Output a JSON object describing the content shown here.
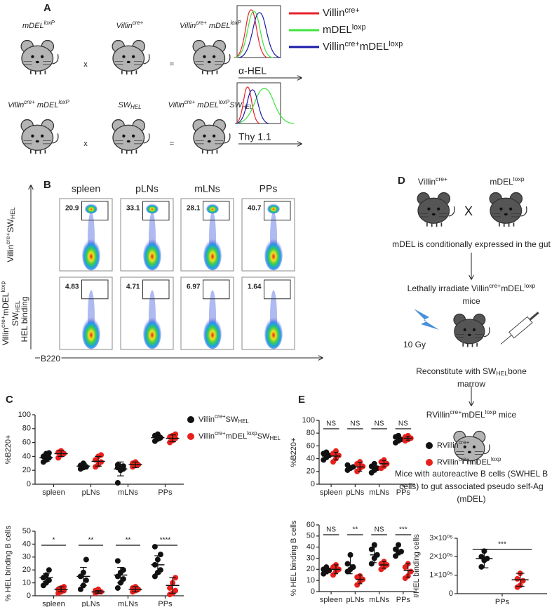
{
  "panel_labels": [
    "A",
    "B",
    "C",
    "D",
    "E"
  ],
  "panel_a": {
    "crosses": [
      {
        "parent1": [
          {
            "t": "mDEL"
          },
          {
            "sup": "loxP"
          }
        ],
        "op1": "x",
        "parent2": [
          {
            "t": "Villin"
          },
          {
            "sup": "cre+"
          }
        ],
        "op2": "=",
        "offspring": [
          {
            "t": "Villin"
          },
          {
            "sup": "cre+"
          },
          {
            "t": " mDEL"
          },
          {
            "sup": "loxP"
          }
        ]
      },
      {
        "parent1": [
          {
            "t": "Villin"
          },
          {
            "sup": "cre+"
          },
          {
            "t": " mDEL"
          },
          {
            "sup": "loxP"
          }
        ],
        "op1": "x",
        "parent2": [
          {
            "t": "SW"
          },
          {
            "sub": "HEL"
          }
        ],
        "op2": "=",
        "offspring": [
          {
            "t": "Villin"
          },
          {
            "sup": "cre+"
          },
          {
            "t": " mDEL"
          },
          {
            "sup": "loxP"
          },
          {
            "t": "SW"
          },
          {
            "sub": "HEL"
          }
        ]
      }
    ],
    "histogram_legend": [
      {
        "label": [
          {
            "t": "Villin"
          },
          {
            "sup": "cre+"
          }
        ],
        "color": "#e8202a"
      },
      {
        "label": [
          {
            "t": "mDEL"
          },
          {
            "sup": "loxp"
          }
        ],
        "color": "#3ee63e"
      },
      {
        "label": [
          {
            "t": "Villin"
          },
          {
            "sup": "cre+"
          },
          {
            "t": "mDEL"
          },
          {
            "sup": "loxp"
          }
        ],
        "color": "#1a1aa8"
      }
    ],
    "histogram_axis_labels": [
      "α-HEL",
      "Thy 1.1"
    ]
  },
  "panel_b": {
    "columns": [
      "spleen",
      "pLNs",
      "mLNs",
      "PPs"
    ],
    "rows": [
      {
        "label_lines": [
          [
            {
              "t": "Villin"
            },
            {
              "sup": "cre+"
            },
            {
              "t": "SW"
            },
            {
              "sub": "HEL"
            }
          ]
        ],
        "gates": [
          20.9,
          33.1,
          28.1,
          40.7
        ]
      },
      {
        "label_lines": [
          [
            {
              "t": "Villin"
            },
            {
              "sup": "cre+"
            },
            {
              "t": "mDEL"
            },
            {
              "sup": "loxp"
            }
          ],
          [
            {
              "t": "SW"
            },
            {
              "sub": "HEL"
            }
          ]
        ],
        "gates": [
          4.83,
          4.71,
          6.97,
          1.64
        ]
      }
    ],
    "y_axis_label": "HEL binding",
    "x_axis_label": "B220"
  },
  "panel_d": {
    "parents": [
      [
        {
          "t": "Villin"
        },
        {
          "sup": "cre+"
        }
      ],
      [
        {
          "t": "mDEL"
        },
        {
          "sup": "loxp"
        }
      ]
    ],
    "cross": "X",
    "dose": "10 Gy",
    "steps": [
      [
        [
          {
            "t": "mDEL is conditionally expressed in the gut"
          }
        ]
      ],
      [
        [
          {
            "t": "Lethally irradiate Villin"
          },
          {
            "sup": "cre+"
          },
          {
            "t": "mDEL"
          },
          {
            "sup": "loxp"
          }
        ],
        [
          {
            "t": "mice"
          }
        ]
      ],
      [
        [
          {
            "t": "Reconstitute with SW"
          },
          {
            "sub": "HEL"
          },
          {
            "t": "bone"
          }
        ],
        [
          {
            "t": "marrow"
          }
        ]
      ],
      [
        [
          {
            "t": "RVillin"
          },
          {
            "sup": "cre+"
          },
          {
            "t": "mDEL"
          },
          {
            "sup": "loxp"
          },
          {
            "t": " mice"
          }
        ]
      ],
      [
        [
          {
            "t": "Mice with autoreactive B cells (SWHEL B"
          }
        ],
        [
          {
            "t": "cells) to gut associated pseudo self-Ag"
          }
        ],
        [
          {
            "t": "(mDEL)"
          }
        ]
      ]
    ]
  },
  "chart_data": [
    {
      "type": "dot",
      "ylabel": "%B220+",
      "categories": [
        "spleen",
        "pLNs",
        "mLNs",
        "PPs"
      ],
      "ylim": [
        0,
        100
      ],
      "yticks": [
        0,
        20,
        40,
        60,
        80,
        100
      ],
      "series": [
        {
          "name": [
            {
              "t": "Villin"
            },
            {
              "sup": "cre+"
            },
            {
              "t": "SW"
            },
            {
              "sub": "HEL"
            }
          ],
          "color": "#111111",
          "values": [
            [
              32,
              35,
              38,
              40,
              44,
              45
            ],
            [
              22,
              24,
              25,
              27,
              30
            ],
            [
              2,
              20,
              22,
              24,
              25,
              26,
              28
            ],
            [
              62,
              65,
              67,
              70,
              72
            ]
          ],
          "means": [
            38,
            26,
            22,
            67
          ],
          "sds": [
            5,
            4,
            10,
            4
          ]
        },
        {
          "name": [
            {
              "t": "Villin"
            },
            {
              "sup": "cre+"
            },
            {
              "t": "mDEL"
            },
            {
              "sup": "loxp"
            },
            {
              "t": "SW"
            },
            {
              "sub": "HEL"
            }
          ],
          "color": "#e8201c",
          "values": [
            [
              38,
              42,
              44,
              46,
              48
            ],
            [
              25,
              28,
              32,
              35,
              40,
              42
            ],
            [
              25,
              27,
              28,
              30,
              32
            ],
            [
              60,
              63,
              66,
              68,
              70,
              72
            ]
          ],
          "means": [
            44,
            33,
            28,
            66
          ],
          "sds": [
            4,
            7,
            4,
            5
          ]
        }
      ]
    },
    {
      "type": "dot",
      "ylabel": "% HEL binding B cells",
      "categories": [
        "spleen",
        "pLNs",
        "mLNs",
        "PPs"
      ],
      "ylim": [
        0,
        50
      ],
      "yticks": [
        0,
        10,
        20,
        30,
        40,
        50
      ],
      "annotations": [
        "*",
        "**",
        "**",
        "****"
      ],
      "series": [
        {
          "color": "#111111",
          "values": [
            [
              8,
              10,
              12,
              14,
              16,
              20
            ],
            [
              5,
              8,
              12,
              15,
              18,
              28
            ],
            [
              6,
              10,
              13,
              15,
              18,
              20,
              27
            ],
            [
              15,
              18,
              20,
              24,
              28,
              32,
              38
            ]
          ],
          "means": [
            14,
            15,
            16,
            24
          ],
          "sds": [
            3,
            7,
            6,
            7
          ]
        },
        {
          "color": "#e8201c",
          "values": [
            [
              2,
              3,
              4,
              5,
              6,
              7
            ],
            [
              2,
              3,
              3,
              4,
              5
            ],
            [
              3,
              4,
              5,
              6,
              7
            ],
            [
              1,
              2,
              4,
              6,
              10,
              14
            ]
          ],
          "means": [
            5,
            3,
            5,
            8
          ],
          "sds": [
            2,
            1,
            2,
            6
          ]
        }
      ]
    },
    {
      "type": "dot",
      "ylabel": "%B220+",
      "categories": [
        "spleen",
        "pLNs",
        "mLNs",
        "PPs"
      ],
      "ylim": [
        0,
        100
      ],
      "yticks": [
        0,
        20,
        40,
        60,
        80,
        100
      ],
      "annotations": [
        "NS",
        "NS",
        "NS",
        "NS"
      ],
      "series": [
        {
          "name": [
            {
              "t": "RVillin"
            },
            {
              "sup": "cre+"
            }
          ],
          "color": "#111111",
          "values": [
            [
              38,
              42,
              45,
              48,
              50
            ],
            [
              22,
              25,
              27,
              30
            ],
            [
              18,
              22,
              25,
              28,
              32
            ],
            [
              65,
              68,
              70,
              74,
              76
            ]
          ],
          "means": [
            44,
            26,
            25,
            72
          ],
          "sds": [
            5,
            3,
            6,
            4
          ]
        },
        {
          "name": [
            {
              "t": "RVillin"
            },
            {
              "sup": "cre+"
            },
            {
              "t": "mDEL"
            },
            {
              "sup": "loxp"
            }
          ],
          "color": "#e8201c",
          "values": [
            [
              35,
              40,
              45,
              48,
              52
            ],
            [
              20,
              25,
              28,
              32,
              35
            ],
            [
              25,
              28,
              32,
              35,
              38
            ],
            [
              68,
              70,
              72,
              74,
              76
            ]
          ],
          "means": [
            44,
            27,
            32,
            72
          ],
          "sds": [
            6,
            7,
            5,
            3
          ]
        }
      ]
    },
    {
      "type": "dot",
      "ylabel": "% HEL binding B cells",
      "categories": [
        "spleen",
        "pLNs",
        "mLNs",
        "PPs"
      ],
      "ylim": [
        0,
        60
      ],
      "yticks": [
        0,
        10,
        20,
        30,
        40,
        50,
        60
      ],
      "annotations": [
        "NS",
        "**",
        "NS",
        "***"
      ],
      "series": [
        {
          "color": "#111111",
          "values": [
            [
              16,
              18,
              19,
              20,
              22
            ],
            [
              18,
              20,
              22,
              25,
              33
            ],
            [
              25,
              30,
              33,
              38,
              42
            ],
            [
              32,
              35,
              36,
              38,
              42
            ]
          ],
          "means": [
            19,
            24,
            33,
            37
          ],
          "sds": [
            3,
            8,
            7,
            4
          ]
        },
        {
          "color": "#e8201c",
          "values": [
            [
              15,
              18,
              20,
              22,
              24
            ],
            [
              6,
              9,
              11,
              13,
              14
            ],
            [
              20,
              22,
              24,
              25,
              27
            ],
            [
              12,
              14,
              18,
              22,
              25
            ]
          ],
          "means": [
            20,
            11,
            24,
            19
          ],
          "sds": [
            4,
            4,
            3,
            6
          ]
        }
      ]
    },
    {
      "type": "dot",
      "ylabel": "#HEL binding cells",
      "categories": [
        "PPs"
      ],
      "ylim": [
        0,
        300000
      ],
      "yticks": [
        0,
        {
          "value": 100000,
          "label": "1×10⁰⁵"
        },
        {
          "value": 200000,
          "label": "2×10⁰⁵"
        },
        {
          "value": 300000,
          "label": "3×10⁰⁵"
        }
      ],
      "annotations": [
        "***"
      ],
      "series": [
        {
          "color": "#111111",
          "values": [
            [
              145000,
              180000,
              190000,
              200000,
              230000
            ]
          ],
          "means": [
            190000
          ],
          "sds": [
            50000
          ]
        },
        {
          "color": "#e8201c",
          "values": [
            [
              35000,
              45000,
              70000,
              80000,
              110000
            ]
          ],
          "means": [
            75000
          ],
          "sds": [
            35000
          ]
        }
      ]
    }
  ]
}
